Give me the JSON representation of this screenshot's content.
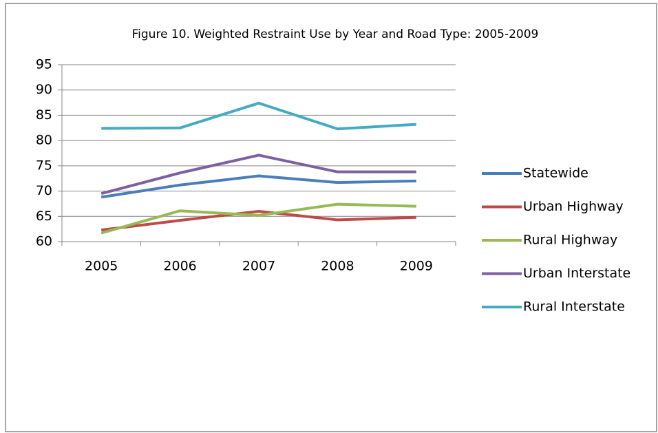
{
  "chart_data": {
    "type": "line",
    "title": "Figure 10.  Weighted Restraint Use by Year and Road Type: 2005-2009",
    "categories": [
      "2005",
      "2006",
      "2007",
      "2008",
      "2009"
    ],
    "series": [
      {
        "name": "Statewide",
        "color": "#4a7ebb",
        "values": [
          68.8,
          71.2,
          73.0,
          71.7,
          72.0
        ]
      },
      {
        "name": "Urban Highway",
        "color": "#be4b48",
        "values": [
          62.3,
          64.2,
          66.0,
          64.3,
          64.8
        ]
      },
      {
        "name": "Rural Highway",
        "color": "#98b954",
        "values": [
          61.7,
          66.1,
          65.2,
          67.4,
          67.0
        ]
      },
      {
        "name": "Urban Interstate",
        "color": "#7d60a0",
        "values": [
          69.5,
          73.6,
          77.1,
          73.8,
          73.8
        ]
      },
      {
        "name": "Rural Interstate",
        "color": "#46aac5",
        "values": [
          82.4,
          82.5,
          87.4,
          82.3,
          83.2
        ]
      }
    ],
    "ylim": [
      60,
      95
    ],
    "yticks": [
      60,
      65,
      70,
      75,
      80,
      85,
      90,
      95
    ],
    "grid": true,
    "legend": "right"
  }
}
